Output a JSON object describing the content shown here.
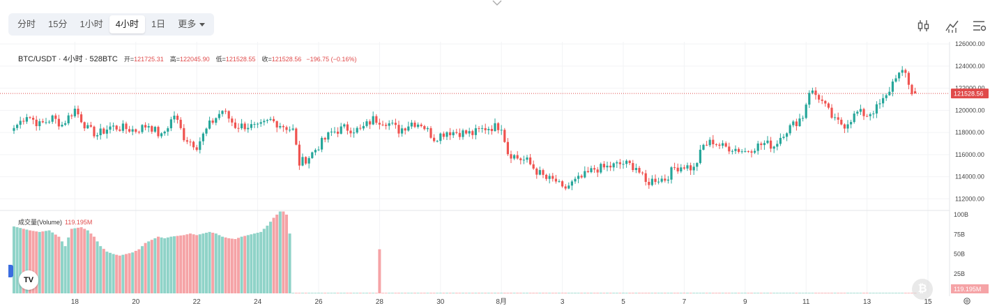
{
  "toolbar": {
    "tabs": [
      {
        "label": "分时",
        "active": false
      },
      {
        "label": "15分",
        "active": false
      },
      {
        "label": "1小时",
        "active": false
      },
      {
        "label": "4小时",
        "active": true
      },
      {
        "label": "1日",
        "active": false
      },
      {
        "label": "更多",
        "active": false
      }
    ]
  },
  "tools": {
    "icons": [
      "candle-settings-icon",
      "indicator-icon",
      "chart-settings-icon"
    ]
  },
  "legend": {
    "symbol": "BTC/USDT · 4小时 · 528BTC",
    "open_label": "开=",
    "open": "121725.31",
    "high_label": "高=",
    "high": "122045.90",
    "low_label": "低=",
    "low": "121528.55",
    "close_label": "收=",
    "close": "121528.56",
    "change": "−196.75 (−0.16%)"
  },
  "volume_legend": {
    "label": "成交量(Volume)",
    "value": "119.195M"
  },
  "colors": {
    "up": "#26a69a",
    "down": "#ef5350",
    "up_volume": "#8fd3c8",
    "down_volume": "#f5a3a6",
    "price_line": "#e04a4a"
  },
  "chart_data": [
    {
      "type": "candlestick",
      "price_tick_labels": [
        "126000.00",
        "124000.00",
        "122000.00",
        "120000.00",
        "118000.00",
        "116000.00",
        "114000.00",
        "112000.00"
      ],
      "ylim": [
        111200,
        126200
      ],
      "last_price_label": "121528.56",
      "last_price": 121528.56,
      "x_tick_labels": [
        {
          "label": "18",
          "i": 19
        },
        {
          "label": "20",
          "i": 38
        },
        {
          "label": "22",
          "i": 57
        },
        {
          "label": "24",
          "i": 76
        },
        {
          "label": "26",
          "i": 95
        },
        {
          "label": "28",
          "i": 114
        },
        {
          "label": "30",
          "i": 133
        },
        {
          "label": "8月",
          "i": 152
        },
        {
          "label": "3",
          "i": 171
        },
        {
          "label": "5",
          "i": 190
        },
        {
          "label": "7",
          "i": 209
        },
        {
          "label": "9",
          "i": 228
        },
        {
          "label": "11",
          "i": 247
        },
        {
          "label": "13",
          "i": 266
        },
        {
          "label": "15",
          "i": 285
        }
      ],
      "anchors": [
        [
          0,
          118400,
          1.6
        ],
        [
          4,
          119600,
          1.6
        ],
        [
          8,
          118700,
          1.6
        ],
        [
          12,
          119300,
          1.6
        ],
        [
          15,
          118700,
          1.6
        ],
        [
          19,
          120100,
          1.6
        ],
        [
          23,
          118300,
          1.6
        ],
        [
          26,
          117800,
          1.6
        ],
        [
          30,
          118500,
          1.6
        ],
        [
          34,
          118400,
          1.6
        ],
        [
          38,
          118200,
          1.6
        ],
        [
          42,
          118700,
          1.6
        ],
        [
          46,
          117600,
          1.6
        ],
        [
          50,
          119600,
          1.6
        ],
        [
          53,
          117600,
          1.6
        ],
        [
          57,
          116800,
          1.6
        ],
        [
          61,
          118700,
          1.6
        ],
        [
          65,
          120000,
          1.6
        ],
        [
          69,
          118600,
          1.6
        ],
        [
          73,
          118600,
          1.6
        ],
        [
          76,
          118400,
          1.6
        ],
        [
          80,
          119100,
          1.6
        ],
        [
          84,
          118600,
          1.6
        ],
        [
          87,
          118200,
          1.6
        ],
        [
          89,
          115200,
          1.6
        ],
        [
          92,
          115800,
          1.6
        ],
        [
          95,
          116800,
          1.6
        ],
        [
          99,
          118000,
          1.6
        ],
        [
          103,
          118400,
          1.6
        ],
        [
          108,
          118200,
          1.6
        ],
        [
          112,
          119200,
          1.6
        ],
        [
          116,
          119000,
          1.6
        ],
        [
          120,
          118200,
          1.6
        ],
        [
          124,
          118900,
          1.6
        ],
        [
          127,
          118800,
          1.6
        ],
        [
          131,
          117500,
          1.6
        ],
        [
          135,
          118100,
          1.6
        ],
        [
          139,
          118000,
          1.6
        ],
        [
          143,
          117900,
          1.6
        ],
        [
          147,
          118400,
          1.6
        ],
        [
          152,
          118600,
          1.6
        ],
        [
          154,
          116200,
          1.6
        ],
        [
          157,
          115700,
          1.6
        ],
        [
          160,
          115400,
          1.6
        ],
        [
          163,
          114500,
          1.6
        ],
        [
          166,
          113800,
          1.6
        ],
        [
          169,
          113600,
          1.6
        ],
        [
          171,
          112800,
          1.6
        ],
        [
          174,
          113400,
          1.6
        ],
        [
          177,
          113900,
          1.6
        ],
        [
          181,
          114700,
          1.6
        ],
        [
          184,
          114800,
          1.6
        ],
        [
          187,
          115000,
          1.6
        ],
        [
          190,
          115200,
          1.6
        ],
        [
          194,
          114900,
          1.6
        ],
        [
          197,
          113400,
          1.6
        ],
        [
          200,
          113800,
          1.6
        ],
        [
          203,
          113800,
          1.6
        ],
        [
          206,
          114800,
          1.6
        ],
        [
          209,
          115000,
          1.6
        ],
        [
          212,
          114700,
          1.6
        ],
        [
          215,
          116800,
          1.6
        ],
        [
          218,
          117200,
          1.6
        ],
        [
          221,
          116700,
          1.6
        ],
        [
          224,
          116600,
          1.6
        ],
        [
          228,
          116300,
          1.6
        ],
        [
          231,
          116700,
          1.6
        ],
        [
          234,
          117000,
          1.6
        ],
        [
          237,
          116800,
          1.6
        ],
        [
          240,
          118000,
          1.6
        ],
        [
          243,
          118700,
          1.6
        ],
        [
          246,
          119500,
          1.6
        ],
        [
          248,
          121800,
          1.6
        ],
        [
          251,
          121200,
          1.6
        ],
        [
          253,
          120300,
          1.6
        ],
        [
          256,
          119000,
          1.6
        ],
        [
          259,
          118700,
          1.6
        ],
        [
          263,
          119800,
          1.6
        ],
        [
          266,
          119600,
          1.6
        ],
        [
          269,
          120200,
          1.6
        ],
        [
          272,
          121200,
          1.6
        ],
        [
          275,
          123200,
          1.6
        ],
        [
          278,
          123300,
          1.6
        ],
        [
          280,
          121600,
          1.6
        ],
        [
          281,
          121528.56,
          1.2
        ]
      ],
      "volume_tick_labels": [
        "100B",
        "75B",
        "50B",
        "25B"
      ],
      "volume_ylim": [
        0,
        100
      ],
      "volume_last_label": "119.195M",
      "volume_anchors": [
        [
          0,
          85
        ],
        [
          2,
          83
        ],
        [
          5,
          80
        ],
        [
          8,
          78
        ],
        [
          11,
          80
        ],
        [
          14,
          72
        ],
        [
          16,
          60
        ],
        [
          18,
          82
        ],
        [
          21,
          84
        ],
        [
          23,
          80
        ],
        [
          25,
          72
        ],
        [
          27,
          60
        ],
        [
          29,
          53
        ],
        [
          31,
          50
        ],
        [
          33,
          48
        ],
        [
          35,
          50
        ],
        [
          37,
          52
        ],
        [
          39,
          56
        ],
        [
          41,
          64
        ],
        [
          43,
          68
        ],
        [
          45,
          72
        ],
        [
          47,
          70
        ],
        [
          49,
          72
        ],
        [
          51,
          73
        ],
        [
          53,
          74
        ],
        [
          55,
          76
        ],
        [
          57,
          74
        ],
        [
          59,
          76
        ],
        [
          61,
          78
        ],
        [
          63,
          76
        ],
        [
          65,
          72
        ],
        [
          67,
          70
        ],
        [
          69,
          69
        ],
        [
          71,
          72
        ],
        [
          73,
          74
        ],
        [
          75,
          76
        ],
        [
          77,
          78
        ],
        [
          79,
          86
        ],
        [
          81,
          96
        ],
        [
          83,
          104
        ],
        [
          84,
          104
        ],
        [
          85,
          100
        ],
        [
          86,
          76
        ],
        [
          87,
          0.6
        ]
      ],
      "volume_spike": {
        "i": 114,
        "value": 56
      },
      "volume_baseline": 0.6
    }
  ]
}
